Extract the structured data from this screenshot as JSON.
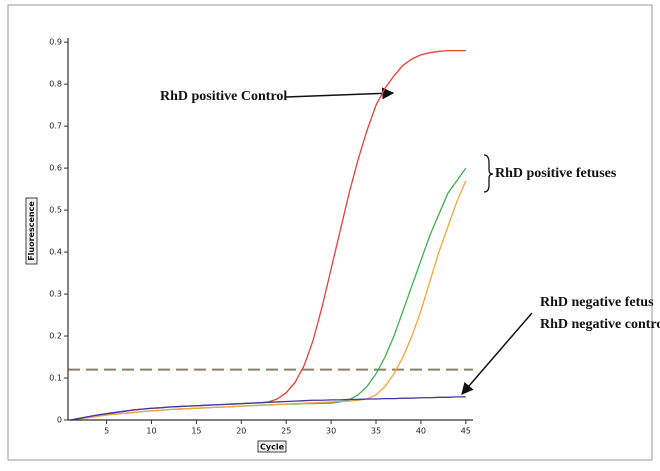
{
  "chart_data": {
    "type": "line",
    "x_label": "Cycle",
    "y_label": "Fluorescence",
    "x": [
      1,
      2,
      3,
      4,
      5,
      6,
      7,
      8,
      9,
      10,
      11,
      12,
      13,
      14,
      15,
      16,
      17,
      18,
      19,
      20,
      21,
      22,
      23,
      24,
      25,
      26,
      27,
      28,
      29,
      30,
      31,
      32,
      33,
      34,
      35,
      36,
      37,
      38,
      39,
      40,
      41,
      42,
      43,
      44,
      45
    ],
    "series": [
      {
        "color": "#e8403a",
        "values": [
          0,
          0.004,
          0.008,
          0.012,
          0.015,
          0.018,
          0.021,
          0.024,
          0.026,
          0.028,
          0.029,
          0.031,
          0.032,
          0.033,
          0.034,
          0.035,
          0.036,
          0.037,
          0.038,
          0.039,
          0.04,
          0.041,
          0.043,
          0.05,
          0.065,
          0.09,
          0.13,
          0.19,
          0.27,
          0.36,
          0.45,
          0.54,
          0.62,
          0.69,
          0.75,
          0.79,
          0.82,
          0.845,
          0.86,
          0.87,
          0.875,
          0.878,
          0.88,
          0.88,
          0.88
        ]
      },
      {
        "color": "#3fb34f",
        "values": [
          0,
          0.003,
          0.006,
          0.009,
          0.012,
          0.014,
          0.016,
          0.018,
          0.02,
          0.022,
          0.023,
          0.025,
          0.026,
          0.027,
          0.028,
          0.029,
          0.03,
          0.031,
          0.032,
          0.033,
          0.034,
          0.035,
          0.036,
          0.037,
          0.038,
          0.038,
          0.039,
          0.039,
          0.04,
          0.04,
          0.043,
          0.048,
          0.06,
          0.08,
          0.11,
          0.15,
          0.2,
          0.26,
          0.32,
          0.38,
          0.44,
          0.49,
          0.54,
          0.57,
          0.6
        ]
      },
      {
        "color": "#f5a53a",
        "values": [
          0,
          0.003,
          0.006,
          0.009,
          0.012,
          0.014,
          0.016,
          0.018,
          0.02,
          0.022,
          0.023,
          0.025,
          0.026,
          0.027,
          0.028,
          0.029,
          0.03,
          0.031,
          0.032,
          0.033,
          0.034,
          0.035,
          0.036,
          0.037,
          0.038,
          0.039,
          0.04,
          0.041,
          0.042,
          0.043,
          0.044,
          0.045,
          0.047,
          0.05,
          0.06,
          0.08,
          0.11,
          0.15,
          0.2,
          0.26,
          0.33,
          0.4,
          0.46,
          0.52,
          0.57
        ]
      },
      {
        "color": "#3a3aa8",
        "values": [
          0,
          0.004,
          0.008,
          0.012,
          0.015,
          0.018,
          0.021,
          0.024,
          0.026,
          0.028,
          0.029,
          0.031,
          0.032,
          0.033,
          0.034,
          0.035,
          0.036,
          0.037,
          0.038,
          0.039,
          0.04,
          0.041,
          0.042,
          0.043,
          0.044,
          0.045,
          0.046,
          0.047,
          0.047,
          0.048,
          0.048,
          0.049,
          0.049,
          0.05,
          0.05,
          0.051,
          0.051,
          0.052,
          0.052,
          0.053,
          0.053,
          0.054,
          0.054,
          0.055,
          0.055
        ]
      }
    ],
    "threshold": 0.12,
    "threshold_color": "#8b7d6b",
    "xlim": [
      0.7,
      45.8
    ],
    "ylim": [
      0,
      0.91
    ],
    "xticks": [
      5,
      10,
      15,
      20,
      25,
      30,
      35,
      40,
      45
    ],
    "yticks": [
      0,
      0.1,
      0.2,
      0.3,
      0.4,
      0.5,
      0.6,
      0.7,
      0.8,
      0.9
    ],
    "annotations": [
      "RhD positive Control",
      "RhD positive fetuses",
      "RhD negative fetus",
      "RhD negative contro"
    ]
  }
}
